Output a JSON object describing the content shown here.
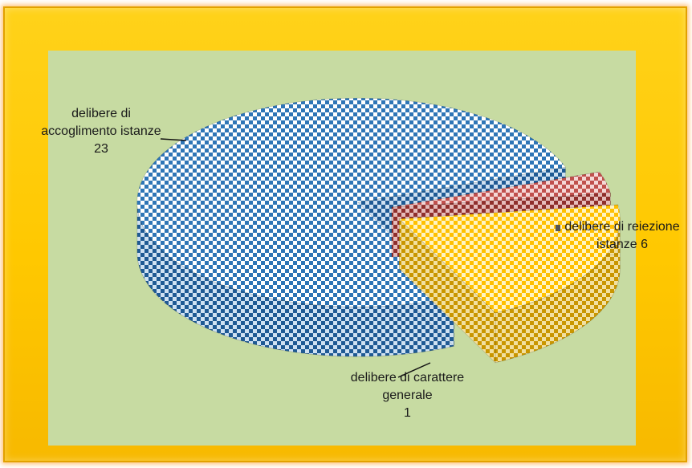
{
  "chart_data": {
    "type": "pie",
    "style": "3d-exploded",
    "title": "",
    "categories": [
      "delibere di accoglimento istanze",
      "delibere di reiezione istanze",
      "delibere di carattere generale"
    ],
    "values": [
      23,
      6,
      1
    ],
    "labels": [
      {
        "lines": [
          "delibere di",
          "accoglimento istanze",
          "23"
        ]
      },
      {
        "lines": [
          "delibere di reiezione",
          "istanze 6"
        ]
      },
      {
        "lines": [
          "delibere di carattere",
          "generale",
          "1"
        ]
      }
    ],
    "colors": [
      "#2e75b6",
      "#ffc000",
      "#c0504d"
    ],
    "legend": "none"
  }
}
